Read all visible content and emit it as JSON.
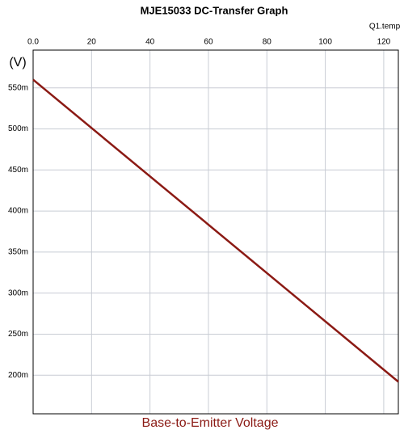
{
  "chart_data": {
    "type": "line",
    "title": "MJE15033 DC-Transfer Graph",
    "x_label": "Q1.temp",
    "y_label": "(V)",
    "x": [
      0,
      125
    ],
    "series": [
      {
        "name": "Base-to-Emitter Voltage",
        "color": "#8b1a14",
        "values": [
          0.56,
          0.192
        ]
      }
    ],
    "xlim": [
      0,
      125
    ],
    "xticks": [
      {
        "value": 0,
        "label": "0.0"
      },
      20,
      40,
      60,
      80,
      100,
      120
    ],
    "ylim": [
      0.153,
      0.596
    ],
    "yticks": [
      {
        "value": 0.2,
        "label": "200m"
      },
      {
        "value": 0.25,
        "label": "250m"
      },
      {
        "value": 0.3,
        "label": "300m"
      },
      {
        "value": 0.35,
        "label": "350m"
      },
      {
        "value": 0.4,
        "label": "400m"
      },
      {
        "value": 0.45,
        "label": "450m"
      },
      {
        "value": 0.5,
        "label": "500m"
      },
      {
        "value": 0.55,
        "label": "550m"
      }
    ],
    "grid": true
  }
}
